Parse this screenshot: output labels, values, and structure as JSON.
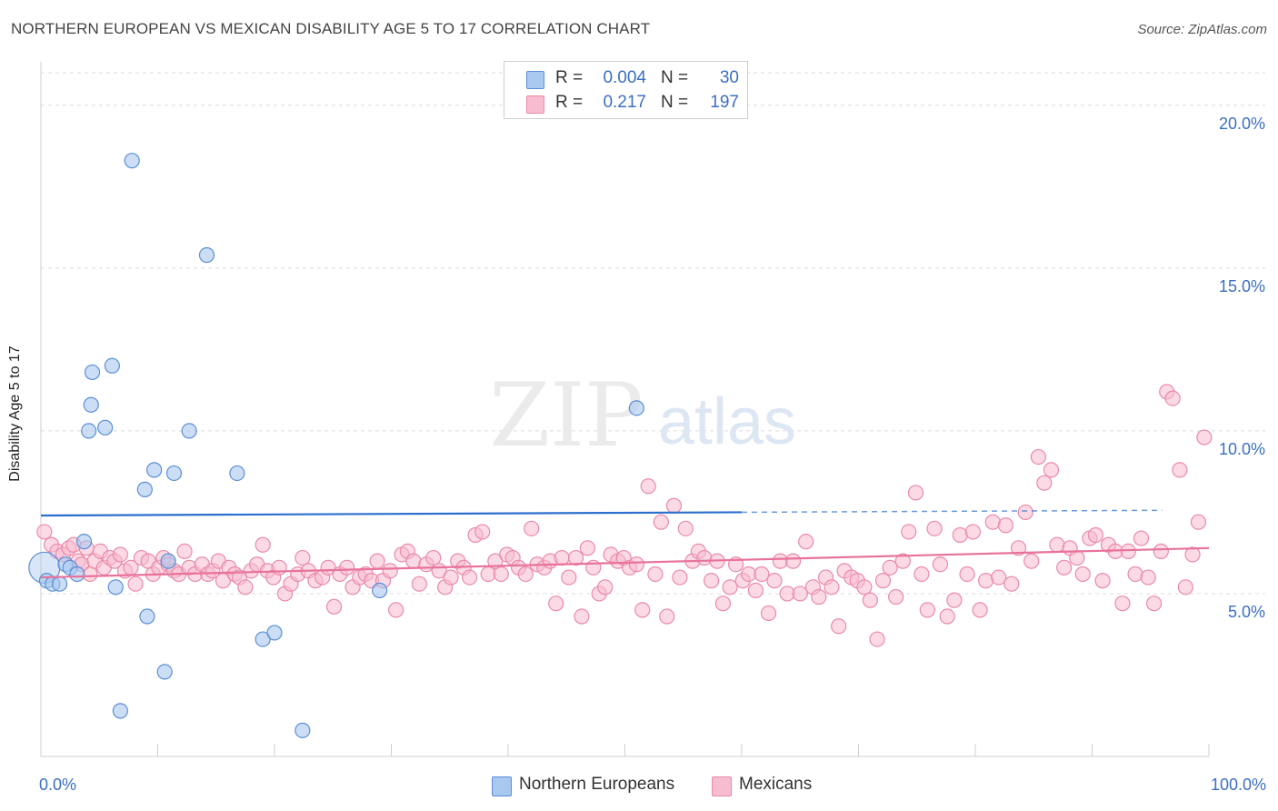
{
  "title": "NORTHERN EUROPEAN VS MEXICAN DISABILITY AGE 5 TO 17 CORRELATION CHART",
  "source": "Source: ZipAtlas.com",
  "watermark": {
    "zip": "ZIP",
    "atlas": "atlas"
  },
  "legend": {
    "rows": [
      {
        "r_label": "R =",
        "r_value": "0.004",
        "n_label": "N =",
        "n_value": "30"
      },
      {
        "r_label": "R =",
        "r_value": "0.217",
        "n_label": "N =",
        "n_value": "197"
      }
    ]
  },
  "colors": {
    "blue_fill": "#a9c8ef",
    "blue_stroke": "#5b8fd6",
    "blue_line": "#2c6fce",
    "pink_fill": "#f7bcd0",
    "pink_stroke": "#e98aa9",
    "pink_line": "#e8729a",
    "axis_label": "#3b6fc4",
    "grid": "#dcdcdc"
  },
  "chart_data": {
    "type": "scatter",
    "title": "NORTHERN EUROPEAN VS MEXICAN DISABILITY AGE 5 TO 17 CORRELATION CHART",
    "xlabel": "",
    "ylabel": "Disability Age 5 to 17",
    "xlim": [
      0,
      100
    ],
    "ylim": [
      0,
      21
    ],
    "x_tick_labels": [
      "0.0%",
      "100.0%"
    ],
    "y_ticks": [
      5,
      10,
      15,
      20
    ],
    "y_tick_labels": [
      "5.0%",
      "10.0%",
      "15.0%",
      "20.0%"
    ],
    "grid": true,
    "legend_position": "top-center",
    "series": [
      {
        "name": "Northern Europeans",
        "R": 0.004,
        "N": 30,
        "points": [
          [
            0.3,
            5.8
          ],
          [
            0.5,
            5.4
          ],
          [
            1.0,
            5.3
          ],
          [
            1.6,
            5.3
          ],
          [
            2.1,
            5.9
          ],
          [
            2.5,
            5.8
          ],
          [
            3.1,
            5.6
          ],
          [
            3.7,
            6.6
          ],
          [
            4.3,
            10.8
          ],
          [
            4.1,
            10.0
          ],
          [
            4.4,
            11.8
          ],
          [
            5.5,
            10.1
          ],
          [
            6.1,
            12.0
          ],
          [
            6.4,
            5.2
          ],
          [
            6.8,
            1.4
          ],
          [
            7.8,
            18.3
          ],
          [
            8.9,
            8.2
          ],
          [
            9.1,
            4.3
          ],
          [
            9.7,
            8.8
          ],
          [
            10.6,
            2.6
          ],
          [
            10.9,
            6.0
          ],
          [
            11.4,
            8.7
          ],
          [
            12.7,
            10.0
          ],
          [
            14.2,
            15.4
          ],
          [
            16.8,
            8.7
          ],
          [
            19.0,
            3.6
          ],
          [
            20.0,
            3.8
          ],
          [
            22.4,
            0.8
          ],
          [
            29.0,
            5.1
          ],
          [
            51.0,
            10.7
          ]
        ],
        "trend": {
          "x": [
            0,
            60
          ],
          "y": [
            7.4,
            7.5
          ],
          "dashed_to": 96
        }
      },
      {
        "name": "Mexicans",
        "R": 0.217,
        "N": 197,
        "points": [
          [
            0.3,
            6.9
          ],
          [
            0.9,
            6.5
          ],
          [
            1.4,
            6.3
          ],
          [
            1.9,
            6.2
          ],
          [
            2.4,
            6.4
          ],
          [
            2.8,
            6.5
          ],
          [
            3.2,
            6.0
          ],
          [
            3.5,
            5.9
          ],
          [
            3.9,
            6.4
          ],
          [
            4.2,
            5.6
          ],
          [
            4.6,
            6.0
          ],
          [
            5.1,
            6.3
          ],
          [
            5.4,
            5.8
          ],
          [
            5.9,
            6.1
          ],
          [
            6.3,
            6.0
          ],
          [
            6.8,
            6.2
          ],
          [
            7.2,
            5.7
          ],
          [
            7.7,
            5.8
          ],
          [
            8.1,
            5.3
          ],
          [
            8.6,
            6.1
          ],
          [
            9.2,
            6.0
          ],
          [
            9.6,
            5.6
          ],
          [
            10.1,
            5.8
          ],
          [
            10.5,
            6.1
          ],
          [
            10.9,
            5.9
          ],
          [
            11.4,
            5.7
          ],
          [
            11.8,
            5.6
          ],
          [
            12.3,
            6.3
          ],
          [
            12.7,
            5.8
          ],
          [
            13.2,
            5.6
          ],
          [
            13.8,
            5.9
          ],
          [
            14.3,
            5.6
          ],
          [
            14.7,
            5.7
          ],
          [
            15.2,
            6.0
          ],
          [
            15.6,
            5.4
          ],
          [
            16.1,
            5.8
          ],
          [
            16.6,
            5.6
          ],
          [
            17.0,
            5.5
          ],
          [
            17.5,
            5.2
          ],
          [
            18.0,
            5.7
          ],
          [
            18.5,
            5.9
          ],
          [
            19.0,
            6.5
          ],
          [
            19.4,
            5.7
          ],
          [
            19.9,
            5.5
          ],
          [
            20.4,
            5.8
          ],
          [
            20.9,
            5.0
          ],
          [
            21.4,
            5.3
          ],
          [
            22.0,
            5.6
          ],
          [
            22.4,
            6.1
          ],
          [
            22.9,
            5.7
          ],
          [
            23.5,
            5.4
          ],
          [
            24.1,
            5.5
          ],
          [
            24.6,
            5.8
          ],
          [
            25.1,
            4.6
          ],
          [
            25.6,
            5.6
          ],
          [
            26.2,
            5.8
          ],
          [
            26.7,
            5.2
          ],
          [
            27.3,
            5.5
          ],
          [
            27.8,
            5.6
          ],
          [
            28.3,
            5.4
          ],
          [
            28.8,
            6.0
          ],
          [
            29.3,
            5.4
          ],
          [
            29.9,
            5.7
          ],
          [
            30.4,
            4.5
          ],
          [
            30.9,
            6.2
          ],
          [
            31.4,
            6.3
          ],
          [
            31.9,
            6.0
          ],
          [
            32.4,
            5.3
          ],
          [
            33.0,
            5.9
          ],
          [
            33.6,
            6.1
          ],
          [
            34.1,
            5.7
          ],
          [
            34.6,
            5.2
          ],
          [
            35.1,
            5.5
          ],
          [
            35.7,
            6.0
          ],
          [
            36.2,
            5.8
          ],
          [
            36.7,
            5.5
          ],
          [
            37.2,
            6.8
          ],
          [
            37.8,
            6.9
          ],
          [
            38.3,
            5.6
          ],
          [
            38.9,
            6.0
          ],
          [
            39.4,
            5.6
          ],
          [
            39.9,
            6.2
          ],
          [
            40.4,
            6.1
          ],
          [
            40.9,
            5.8
          ],
          [
            41.5,
            5.6
          ],
          [
            42.0,
            7.0
          ],
          [
            42.5,
            5.9
          ],
          [
            43.1,
            5.8
          ],
          [
            43.6,
            6.0
          ],
          [
            44.1,
            4.7
          ],
          [
            44.6,
            6.1
          ],
          [
            45.2,
            5.5
          ],
          [
            45.8,
            6.1
          ],
          [
            46.3,
            4.3
          ],
          [
            46.8,
            6.4
          ],
          [
            47.3,
            5.8
          ],
          [
            47.8,
            5.0
          ],
          [
            48.3,
            5.2
          ],
          [
            48.8,
            6.2
          ],
          [
            49.4,
            6.0
          ],
          [
            49.9,
            6.1
          ],
          [
            50.4,
            5.8
          ],
          [
            51.0,
            5.9
          ],
          [
            51.5,
            4.5
          ],
          [
            52.0,
            8.3
          ],
          [
            52.6,
            5.6
          ],
          [
            53.1,
            7.2
          ],
          [
            53.6,
            4.3
          ],
          [
            54.2,
            7.7
          ],
          [
            54.7,
            5.5
          ],
          [
            55.2,
            7.0
          ],
          [
            55.8,
            6.0
          ],
          [
            56.3,
            6.3
          ],
          [
            56.8,
            6.1
          ],
          [
            57.4,
            5.4
          ],
          [
            57.9,
            6.0
          ],
          [
            58.4,
            4.7
          ],
          [
            59.0,
            5.2
          ],
          [
            59.5,
            5.9
          ],
          [
            60.1,
            5.4
          ],
          [
            60.6,
            5.6
          ],
          [
            61.2,
            5.1
          ],
          [
            61.7,
            5.6
          ],
          [
            62.3,
            4.4
          ],
          [
            62.8,
            5.4
          ],
          [
            63.3,
            6.0
          ],
          [
            63.9,
            5.0
          ],
          [
            64.4,
            6.0
          ],
          [
            65.0,
            5.0
          ],
          [
            65.5,
            6.6
          ],
          [
            66.1,
            5.2
          ],
          [
            66.6,
            4.9
          ],
          [
            67.2,
            5.5
          ],
          [
            67.7,
            5.2
          ],
          [
            68.3,
            4.0
          ],
          [
            68.8,
            5.7
          ],
          [
            69.4,
            5.5
          ],
          [
            69.9,
            5.4
          ],
          [
            70.5,
            5.2
          ],
          [
            71.0,
            4.8
          ],
          [
            71.6,
            3.6
          ],
          [
            72.1,
            5.4
          ],
          [
            72.7,
            5.8
          ],
          [
            73.2,
            4.9
          ],
          [
            73.8,
            6.0
          ],
          [
            74.3,
            6.9
          ],
          [
            74.9,
            8.1
          ],
          [
            75.4,
            5.6
          ],
          [
            75.9,
            4.5
          ],
          [
            76.5,
            7.0
          ],
          [
            77.0,
            5.9
          ],
          [
            77.6,
            4.3
          ],
          [
            78.2,
            4.8
          ],
          [
            78.7,
            6.8
          ],
          [
            79.3,
            5.6
          ],
          [
            79.8,
            6.9
          ],
          [
            80.4,
            4.5
          ],
          [
            80.9,
            5.4
          ],
          [
            81.5,
            7.2
          ],
          [
            82.0,
            5.5
          ],
          [
            82.6,
            7.1
          ],
          [
            83.1,
            5.3
          ],
          [
            83.7,
            6.4
          ],
          [
            84.3,
            7.5
          ],
          [
            84.8,
            6.0
          ],
          [
            85.4,
            9.2
          ],
          [
            85.9,
            8.4
          ],
          [
            86.5,
            8.8
          ],
          [
            87.0,
            6.5
          ],
          [
            87.6,
            5.8
          ],
          [
            88.1,
            6.4
          ],
          [
            88.7,
            6.1
          ],
          [
            89.2,
            5.6
          ],
          [
            89.8,
            6.7
          ],
          [
            90.3,
            6.8
          ],
          [
            90.9,
            5.4
          ],
          [
            91.4,
            6.5
          ],
          [
            92.0,
            6.3
          ],
          [
            92.6,
            4.7
          ],
          [
            93.1,
            6.3
          ],
          [
            93.7,
            5.6
          ],
          [
            94.2,
            6.7
          ],
          [
            94.8,
            5.5
          ],
          [
            95.3,
            4.7
          ],
          [
            95.9,
            6.3
          ],
          [
            96.4,
            11.2
          ],
          [
            96.9,
            11.0
          ],
          [
            97.5,
            8.8
          ],
          [
            98.0,
            5.2
          ],
          [
            98.6,
            6.2
          ],
          [
            99.1,
            7.2
          ],
          [
            99.6,
            9.8
          ]
        ],
        "trend": {
          "x": [
            0,
            100
          ],
          "y": [
            5.5,
            6.4
          ]
        }
      }
    ]
  }
}
